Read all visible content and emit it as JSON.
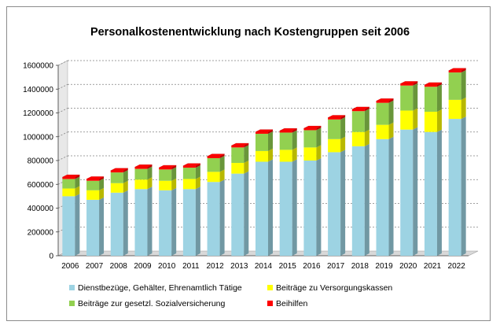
{
  "chart_data": {
    "type": "bar",
    "stacked": true,
    "three_d": true,
    "title": "Personalkostenentwicklung nach Kostengruppen seit 2006",
    "xlabel": "",
    "ylabel": "",
    "ylim": [
      0,
      1600000
    ],
    "yticks": [
      "0",
      "200000",
      "400000",
      "600000",
      "800000",
      "1000000",
      "1200000",
      "1400000",
      "1600000"
    ],
    "grid": true,
    "legend_position": "bottom",
    "categories": [
      "2006",
      "2007",
      "2008",
      "2009",
      "2010",
      "2011",
      "2012",
      "2013",
      "2014",
      "2015",
      "2016",
      "2017",
      "2018",
      "2019",
      "2020",
      "2021",
      "2022"
    ],
    "series": [
      {
        "name": "Dienstbezüge, Gehälter, Ehrenamtlich Tätige",
        "color": "#9dd3e3",
        "values": [
          500000,
          470000,
          530000,
          560000,
          550000,
          560000,
          620000,
          690000,
          790000,
          790000,
          800000,
          870000,
          920000,
          980000,
          1060000,
          1040000,
          1150000
        ]
      },
      {
        "name": "Beiträge zu Versorgungskassen",
        "color": "#ffff00",
        "values": [
          65000,
          80000,
          80000,
          80000,
          80000,
          85000,
          85000,
          90000,
          90000,
          100000,
          110000,
          110000,
          120000,
          120000,
          160000,
          170000,
          160000
        ]
      },
      {
        "name": "Beiträge zur gesetzl. Sozialversicherung",
        "color": "#92d050",
        "values": [
          80000,
          80000,
          90000,
          90000,
          95000,
          95000,
          115000,
          130000,
          145000,
          145000,
          145000,
          165000,
          175000,
          185000,
          210000,
          210000,
          230000
        ]
      },
      {
        "name": "Beihilfen",
        "color": "#ff0000",
        "values": [
          15000,
          15000,
          15000,
          15000,
          15000,
          15000,
          15000,
          15000,
          15000,
          15000,
          15000,
          15000,
          15000,
          15000,
          15000,
          15000,
          15000
        ]
      }
    ]
  }
}
